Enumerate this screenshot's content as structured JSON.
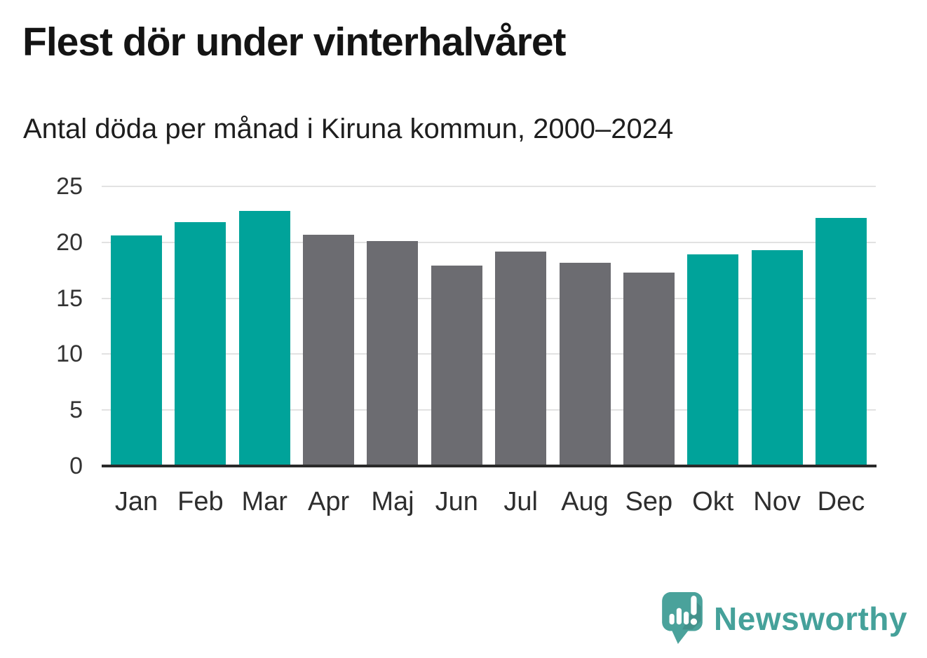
{
  "title": "Flest dör under vinterhalvåret",
  "subtitle": "Antal döda per månad i Kiruna kommun, 2000–2024",
  "brand": {
    "name": "Newsworthy",
    "color": "#45a19a"
  },
  "colors": {
    "winter_bar": "#00a39a",
    "summer_bar": "#6c6c71",
    "gridline": "#e2e2e2",
    "axis_line": "#2a2a2a",
    "tick_label": "#333333"
  },
  "chart_data": {
    "type": "bar",
    "title": "Flest dör under vinterhalvåret",
    "subtitle": "Antal döda per månad i Kiruna kommun, 2000–2024",
    "categories": [
      "Jan",
      "Feb",
      "Mar",
      "Apr",
      "Maj",
      "Jun",
      "Jul",
      "Aug",
      "Sep",
      "Okt",
      "Nov",
      "Dec"
    ],
    "values": [
      20.6,
      21.8,
      22.8,
      20.7,
      20.1,
      17.9,
      19.2,
      18.2,
      17.3,
      18.9,
      19.3,
      22.2
    ],
    "bar_colors": [
      "winter_bar",
      "winter_bar",
      "winter_bar",
      "summer_bar",
      "summer_bar",
      "summer_bar",
      "summer_bar",
      "summer_bar",
      "summer_bar",
      "winter_bar",
      "winter_bar",
      "winter_bar"
    ],
    "xlabel": "",
    "ylabel": "",
    "yticks": [
      0,
      5,
      10,
      15,
      20,
      25
    ],
    "ylim": [
      0,
      25
    ],
    "grid": true,
    "legend": false
  }
}
